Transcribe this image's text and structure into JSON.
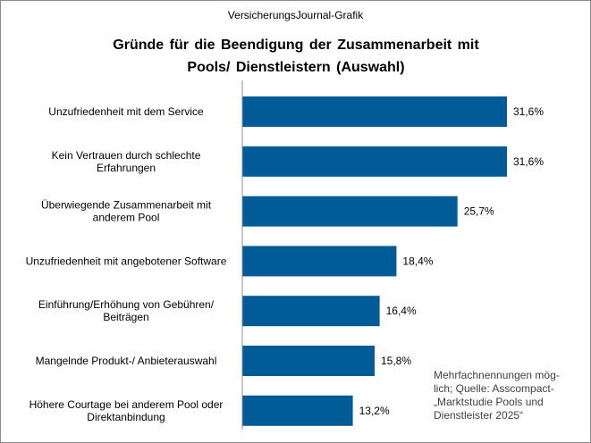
{
  "header": {
    "source": "VersicherungsJournal-Grafik",
    "title_line1": "Gründe für die Beendigung  der Zusammenarbeit  mit",
    "title_line2": "Pools/ Dienstleistern  (Auswahl)"
  },
  "footnote": {
    "line1": "Mehrfachnennungen mög-",
    "line2": "lich; Quelle: Asscompact-",
    "line3": "„Marktstudie Pools und",
    "line4": "Dienstleister 2025“"
  },
  "colors": {
    "bar": "#005b96",
    "axis": "#8c8c8c"
  },
  "chart_data": {
    "type": "bar",
    "orientation": "horizontal",
    "title": "Gründe für die Beendigung der Zusammenarbeit mit Pools/ Dienstleistern (Auswahl)",
    "xlabel": "",
    "ylabel": "",
    "unit": "%",
    "xlim": [
      0,
      35
    ],
    "categories": [
      [
        "Unzufriedenheit mit dem Service"
      ],
      [
        "Kein Vertrauen durch schlechte",
        "Erfahrungen"
      ],
      [
        "Überwiegende Zusammenarbeit mit",
        "anderem Pool"
      ],
      [
        "Unzufriedenheit mit angebotener Software"
      ],
      [
        "Einführung/Erhöhung von Gebühren/",
        "Beiträgen"
      ],
      [
        "Mangelnde Produkt-/ Anbieterauswahl"
      ],
      [
        "Höhere Courtage bei anderem Pool oder",
        "Direktanbindung"
      ]
    ],
    "values": [
      31.6,
      31.6,
      25.7,
      18.4,
      16.4,
      15.8,
      13.2
    ],
    "value_labels": [
      "31,6%",
      "31,6%",
      "25,7%",
      "18,4%",
      "16,4%",
      "15,8%",
      "13,2%"
    ]
  }
}
